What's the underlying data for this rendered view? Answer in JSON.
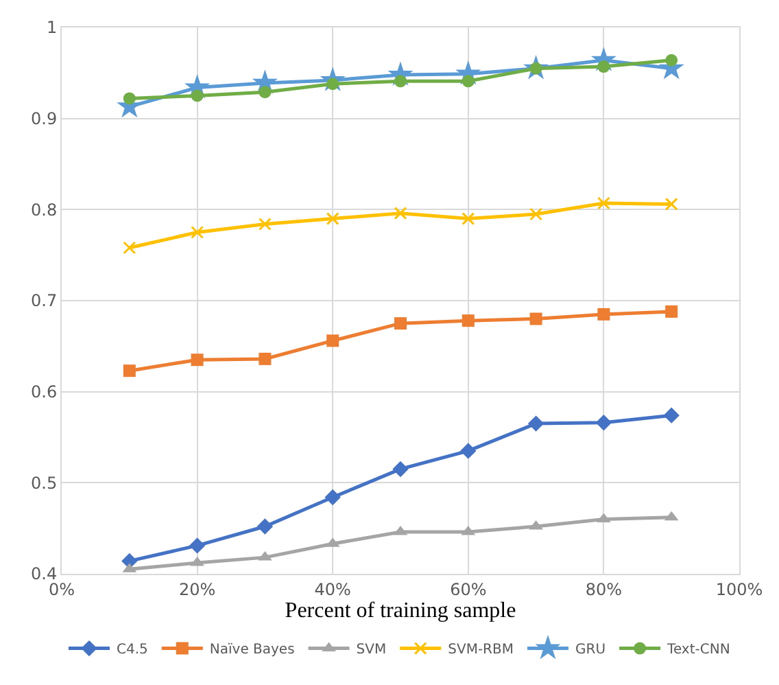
{
  "chart_data": {
    "type": "line",
    "xlabel": "Percent of training sample",
    "x": [
      10,
      20,
      30,
      40,
      50,
      60,
      70,
      80,
      90
    ],
    "xlim": [
      0,
      100
    ],
    "xticks": [
      {
        "value": 0,
        "label": "0%"
      },
      {
        "value": 20,
        "label": "20%"
      },
      {
        "value": 40,
        "label": "40%"
      },
      {
        "value": 60,
        "label": "60%"
      },
      {
        "value": 80,
        "label": "80%"
      },
      {
        "value": 100,
        "label": "100%"
      }
    ],
    "ylim": [
      0.4,
      1
    ],
    "yticks": [
      0.4,
      0.5,
      0.6,
      0.7,
      0.8,
      0.9,
      1
    ],
    "grid": true,
    "legend": "bottom",
    "series": [
      {
        "name": "C4.5",
        "color": "#4472c4",
        "marker": "diamond",
        "values": [
          0.414,
          0.431,
          0.452,
          0.484,
          0.515,
          0.535,
          0.565,
          0.566,
          0.574
        ]
      },
      {
        "name": "Naïve Bayes",
        "color": "#ed7d31",
        "marker": "square",
        "values": [
          0.623,
          0.635,
          0.636,
          0.656,
          0.675,
          0.678,
          0.68,
          0.685,
          0.688
        ]
      },
      {
        "name": "SVM",
        "color": "#a5a5a5",
        "marker": "triangle",
        "values": [
          0.405,
          0.412,
          0.418,
          0.433,
          0.446,
          0.446,
          0.452,
          0.46,
          0.462
        ]
      },
      {
        "name": "SVM-RBM",
        "color": "#ffc000",
        "marker": "cross",
        "values": [
          0.758,
          0.775,
          0.784,
          0.79,
          0.796,
          0.79,
          0.795,
          0.807,
          0.806
        ]
      },
      {
        "name": "GRU",
        "color": "#5b9bd5",
        "marker": "star",
        "values": [
          0.913,
          0.934,
          0.939,
          0.942,
          0.948,
          0.949,
          0.955,
          0.964,
          0.955
        ]
      },
      {
        "name": "Text-CNN",
        "color": "#70ad47",
        "marker": "circle",
        "values": [
          0.922,
          0.925,
          0.929,
          0.938,
          0.941,
          0.941,
          0.955,
          0.957,
          0.964
        ]
      }
    ]
  }
}
